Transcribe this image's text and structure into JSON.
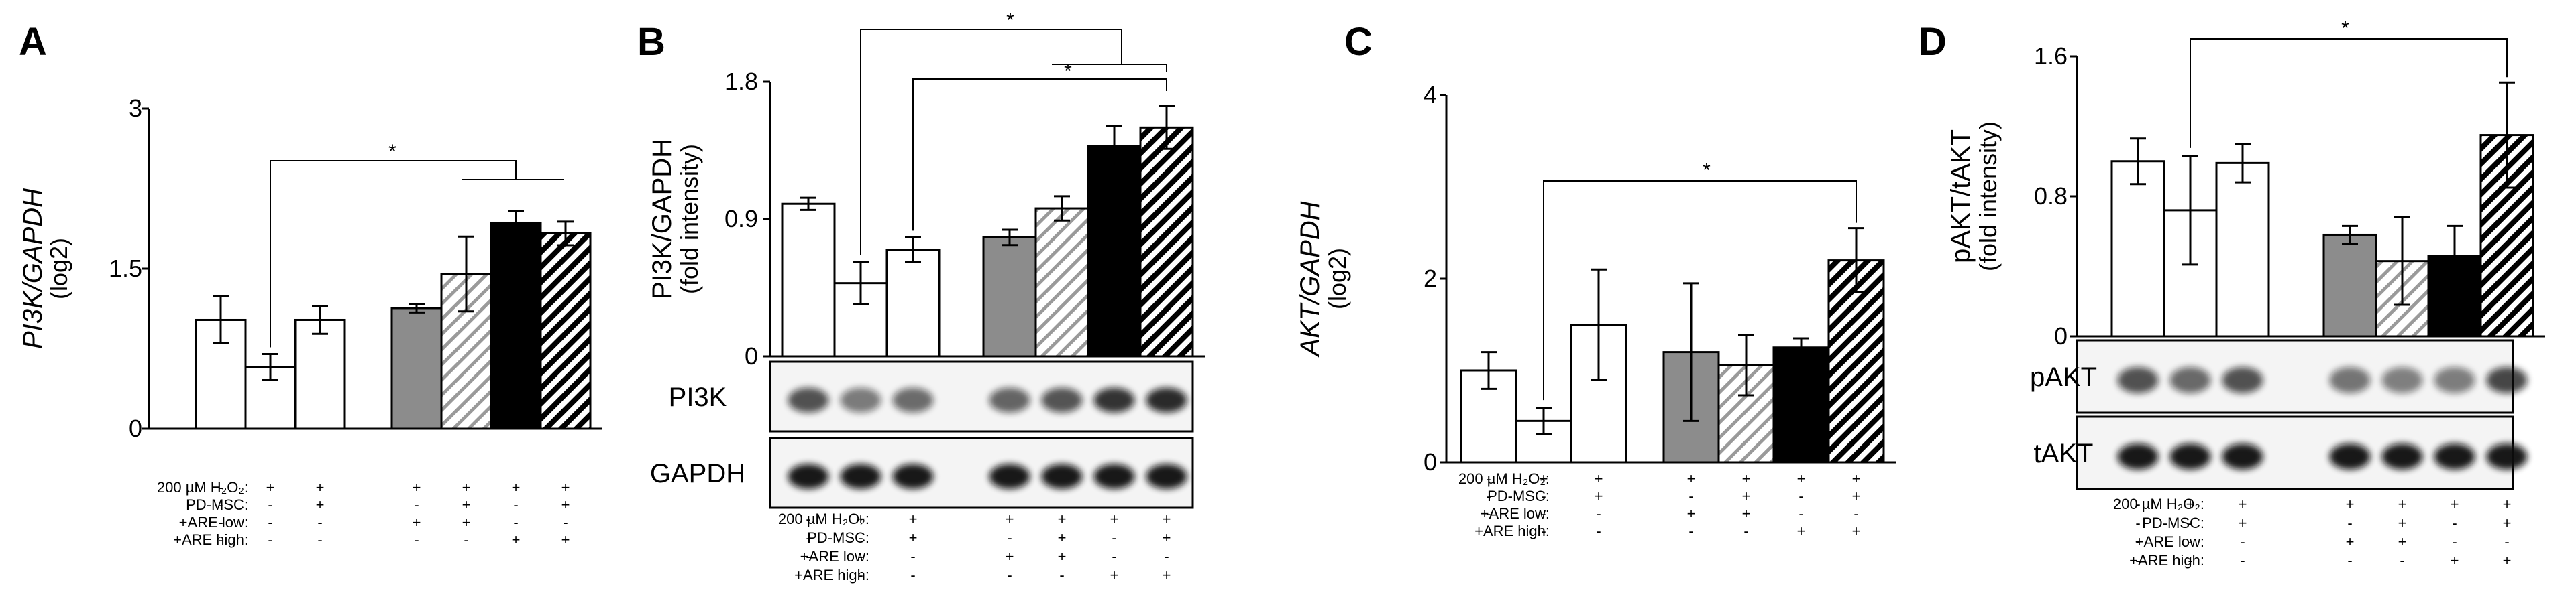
{
  "chart_data": [
    {
      "type": "bar",
      "panel": "A",
      "ylabel_italic": "PI3K/GAPDH",
      "ylabel_unit": "(log2)",
      "ylim": [
        0,
        3
      ],
      "yticks": [
        "0",
        "1.5",
        "3"
      ],
      "values": [
        1.02,
        0.58,
        1.02,
        1.13,
        1.45,
        1.93,
        1.83
      ],
      "errors": [
        0.22,
        0.12,
        0.13,
        0.04,
        0.35,
        0.11,
        0.11
      ],
      "fills": [
        "white",
        "white",
        "white",
        "gray",
        "hatch",
        "black",
        "hatch-bold"
      ],
      "significance": [
        "*"
      ],
      "conditions": [
        {
          "label": "200 µM H₂O₂:",
          "signs": [
            "-",
            "+",
            "+",
            "+",
            "+",
            "+",
            "+"
          ]
        },
        {
          "label": "PD-MSC:",
          "signs": [
            "-",
            "-",
            "+",
            "-",
            "+",
            "-",
            "+"
          ]
        },
        {
          "label": "+ARE low:",
          "signs": [
            "-",
            "-",
            "-",
            "+",
            "+",
            "-",
            "-"
          ]
        },
        {
          "label": "+ARE high:",
          "signs": [
            "-",
            "-",
            "-",
            "-",
            "-",
            "+",
            "+"
          ]
        }
      ]
    },
    {
      "type": "bar",
      "panel": "B",
      "ylabel": "PI3K/GAPDH",
      "ylabel_unit": "(fold intensity)",
      "ylim": [
        0,
        1.8
      ],
      "yticks": [
        "0",
        "0.9",
        "1.8"
      ],
      "values": [
        1.0,
        0.48,
        0.7,
        0.78,
        0.97,
        1.38,
        1.5
      ],
      "errors": [
        0.04,
        0.14,
        0.08,
        0.05,
        0.08,
        0.13,
        0.14
      ],
      "fills": [
        "white",
        "white",
        "white",
        "gray",
        "hatch",
        "black",
        "hatch-bold"
      ],
      "significance": [
        "*",
        "*"
      ],
      "blots": [
        "PI3K",
        "GAPDH"
      ],
      "conditions": [
        {
          "label": "200 µM H₂O₂:",
          "signs": [
            "-",
            "+",
            "+",
            "+",
            "+",
            "+",
            "+"
          ]
        },
        {
          "label": "PD-MSC:",
          "signs": [
            "-",
            "-",
            "+",
            "-",
            "+",
            "-",
            "+"
          ]
        },
        {
          "label": "+ARE low:",
          "signs": [
            "-",
            "-",
            "-",
            "+",
            "+",
            "-",
            "-"
          ]
        },
        {
          "label": "+ARE high:",
          "signs": [
            "-",
            "-",
            "-",
            "-",
            "-",
            "+",
            "+"
          ]
        }
      ]
    },
    {
      "type": "bar",
      "panel": "C",
      "ylabel_italic": "AKT/GAPDH",
      "ylabel_unit": "(log2)",
      "ylim": [
        0,
        4
      ],
      "yticks": [
        "0",
        "2",
        "4"
      ],
      "values": [
        1.0,
        0.45,
        1.5,
        1.2,
        1.06,
        1.25,
        2.2
      ],
      "errors": [
        0.2,
        0.14,
        0.6,
        0.75,
        0.33,
        0.1,
        0.35
      ],
      "fills": [
        "white",
        "white",
        "white",
        "gray",
        "hatch",
        "black",
        "hatch-bold"
      ],
      "significance": [
        "*"
      ],
      "conditions": [
        {
          "label": "200 µM H₂O₂:",
          "signs": [
            "-",
            "+",
            "+",
            "+",
            "+",
            "+",
            "+"
          ]
        },
        {
          "label": "PD-MSC:",
          "signs": [
            "-",
            "-",
            "+",
            "-",
            "+",
            "-",
            "+"
          ]
        },
        {
          "label": "+ARE low:",
          "signs": [
            "-",
            "-",
            "-",
            "+",
            "+",
            "-",
            "-"
          ]
        },
        {
          "label": "+ARE high:",
          "signs": [
            "-",
            "-",
            "-",
            "-",
            "-",
            "+",
            "+"
          ]
        }
      ]
    },
    {
      "type": "bar",
      "panel": "D",
      "ylabel": "pAKT/tAKT",
      "ylabel_unit": "(fold intensity)",
      "ylim": [
        0,
        1.6
      ],
      "yticks": [
        "0",
        "0.8",
        "1.6"
      ],
      "values": [
        1.0,
        0.72,
        0.99,
        0.58,
        0.43,
        0.46,
        1.15
      ],
      "errors": [
        0.13,
        0.31,
        0.11,
        0.05,
        0.25,
        0.17,
        0.3
      ],
      "fills": [
        "white",
        "white",
        "white",
        "gray",
        "hatch",
        "black",
        "hatch-bold"
      ],
      "significance": [
        "*"
      ],
      "blots": [
        "pAKT",
        "tAKT"
      ],
      "conditions": [
        {
          "label": "200 µM H₂O₂:",
          "signs": [
            "-",
            "+",
            "+",
            "+",
            "+",
            "+",
            "+"
          ]
        },
        {
          "label": "PD-MSC:",
          "signs": [
            "-",
            "-",
            "+",
            "-",
            "+",
            "-",
            "+"
          ]
        },
        {
          "label": "+ARE low:",
          "signs": [
            "-",
            "-",
            "-",
            "+",
            "+",
            "-",
            "-"
          ]
        },
        {
          "label": "+ARE high:",
          "signs": [
            "-",
            "-",
            "-",
            "-",
            "-",
            "+",
            "+"
          ]
        }
      ]
    }
  ]
}
